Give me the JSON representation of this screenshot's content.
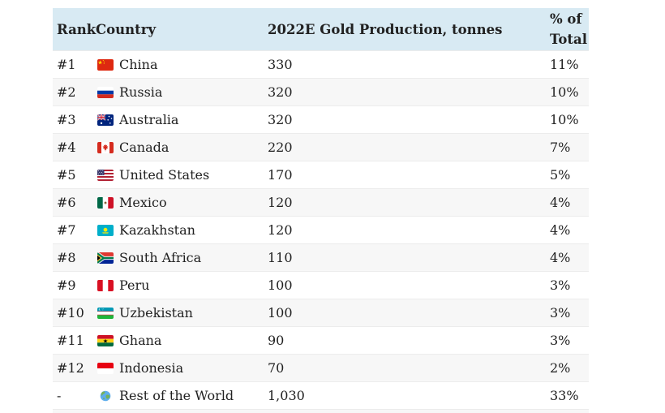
{
  "table": {
    "columns": [
      "Rank",
      "Country",
      "2022E Gold Production, tonnes",
      "% of Total"
    ],
    "rows": [
      {
        "rank": "#1",
        "country": "China",
        "flag": "china",
        "production": "330",
        "percent": "11%"
      },
      {
        "rank": "#2",
        "country": "Russia",
        "flag": "russia",
        "production": "320",
        "percent": "10%"
      },
      {
        "rank": "#3",
        "country": "Australia",
        "flag": "australia",
        "production": "320",
        "percent": "10%"
      },
      {
        "rank": "#4",
        "country": "Canada",
        "flag": "canada",
        "production": "220",
        "percent": "7%"
      },
      {
        "rank": "#5",
        "country": "United States",
        "flag": "usa",
        "production": "170",
        "percent": "5%"
      },
      {
        "rank": "#6",
        "country": "Mexico",
        "flag": "mexico",
        "production": "120",
        "percent": "4%"
      },
      {
        "rank": "#7",
        "country": "Kazakhstan",
        "flag": "kazakhstan",
        "production": "120",
        "percent": "4%"
      },
      {
        "rank": "#8",
        "country": "South Africa",
        "flag": "south-africa",
        "production": "110",
        "percent": "4%"
      },
      {
        "rank": "#9",
        "country": "Peru",
        "flag": "peru",
        "production": "100",
        "percent": "3%"
      },
      {
        "rank": "#10",
        "country": "Uzbekistan",
        "flag": "uzbekistan",
        "production": "100",
        "percent": "3%"
      },
      {
        "rank": "#11",
        "country": "Ghana",
        "flag": "ghana",
        "production": "90",
        "percent": "3%"
      },
      {
        "rank": "#12",
        "country": "Indonesia",
        "flag": "indonesia",
        "production": "70",
        "percent": "2%"
      },
      {
        "rank": "-",
        "country": "Rest of the World",
        "flag": "globe",
        "production": "1,030",
        "percent": "33%"
      }
    ]
  },
  "colors": {
    "header_bg": "#d8eaf3",
    "row_alt_bg": "#f7f7f7",
    "row_border": "#ececec",
    "text": "#212121"
  },
  "chart_data": {
    "type": "table",
    "title": "2022E Gold Production by Country",
    "columns": [
      "Rank",
      "Country",
      "2022E Gold Production, tonnes",
      "% of Total"
    ],
    "rows": [
      [
        "#1",
        "China",
        330,
        "11%"
      ],
      [
        "#2",
        "Russia",
        320,
        "10%"
      ],
      [
        "#3",
        "Australia",
        320,
        "10%"
      ],
      [
        "#4",
        "Canada",
        220,
        "7%"
      ],
      [
        "#5",
        "United States",
        170,
        "5%"
      ],
      [
        "#6",
        "Mexico",
        120,
        "4%"
      ],
      [
        "#7",
        "Kazakhstan",
        120,
        "4%"
      ],
      [
        "#8",
        "South Africa",
        110,
        "4%"
      ],
      [
        "#9",
        "Peru",
        100,
        "3%"
      ],
      [
        "#10",
        "Uzbekistan",
        100,
        "3%"
      ],
      [
        "#11",
        "Ghana",
        90,
        "3%"
      ],
      [
        "#12",
        "Indonesia",
        70,
        "2%"
      ],
      [
        "-",
        "Rest of the World",
        1030,
        "33%"
      ]
    ]
  }
}
